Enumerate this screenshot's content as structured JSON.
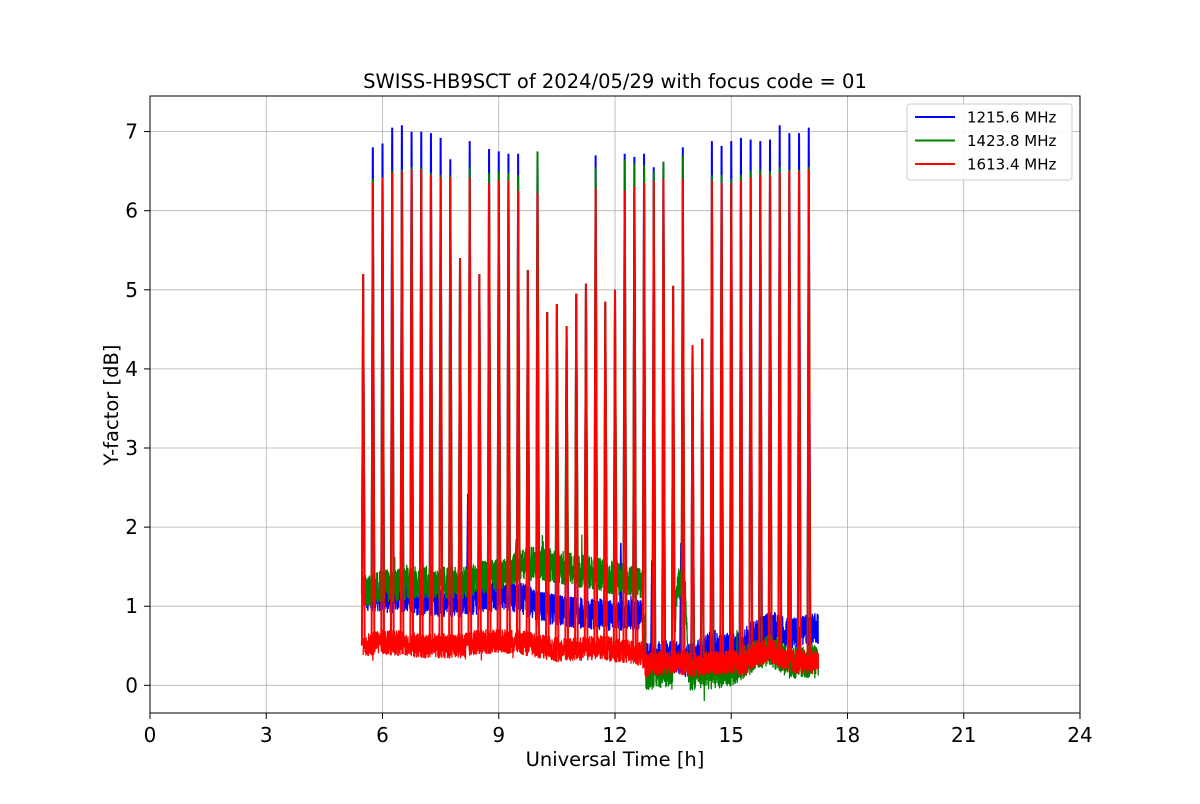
{
  "chart_data": {
    "type": "line",
    "title": "SWISS-HB9SCT of 2024/05/29 with focus code = 01",
    "xlabel": "Universal Time [h]",
    "ylabel": "Y-factor [dB]",
    "xlim": [
      0,
      24
    ],
    "ylim": [
      -0.35,
      7.45
    ],
    "xticks": [
      0,
      3,
      6,
      9,
      12,
      15,
      18,
      21,
      24
    ],
    "yticks": [
      0,
      1,
      2,
      3,
      4,
      5,
      6,
      7
    ],
    "grid": true,
    "legend_position": "top-right",
    "data_start": 5.5,
    "data_end": 17.25,
    "series": [
      {
        "name": "1215.6 MHz",
        "color": "#0000ff",
        "baseline": [
          [
            5.5,
            1.15
          ],
          [
            6,
            1.12
          ],
          [
            7,
            1.08
          ],
          [
            8,
            1.05
          ],
          [
            8.5,
            1.1
          ],
          [
            9,
            1.15
          ],
          [
            9.5,
            1.12
          ],
          [
            10,
            1.0
          ],
          [
            10.5,
            0.95
          ],
          [
            11,
            0.92
          ],
          [
            11.5,
            0.9
          ],
          [
            12,
            0.88
          ],
          [
            12.7,
            0.88
          ],
          [
            12.8,
            0.35
          ],
          [
            13.5,
            0.38
          ],
          [
            13.8,
            0.3
          ],
          [
            14,
            0.35
          ],
          [
            14.5,
            0.5
          ],
          [
            15,
            0.45
          ],
          [
            15.3,
            0.5
          ],
          [
            15.6,
            0.65
          ],
          [
            16,
            0.75
          ],
          [
            16.5,
            0.65
          ],
          [
            17,
            0.7
          ],
          [
            17.25,
            0.72
          ]
        ],
        "band": 0.28,
        "spikes": [
          [
            5.5,
            5.2
          ],
          [
            5.75,
            6.8
          ],
          [
            6.0,
            6.85
          ],
          [
            6.25,
            7.05
          ],
          [
            6.5,
            7.08
          ],
          [
            6.75,
            7.0
          ],
          [
            7.0,
            7.0
          ],
          [
            7.25,
            6.98
          ],
          [
            7.5,
            6.92
          ],
          [
            7.75,
            6.65
          ],
          [
            8.0,
            5.4
          ],
          [
            8.25,
            6.88
          ],
          [
            8.5,
            5.2
          ],
          [
            8.75,
            6.78
          ],
          [
            9.0,
            6.75
          ],
          [
            9.25,
            6.72
          ],
          [
            9.5,
            6.72
          ],
          [
            9.75,
            5.25
          ],
          [
            10.0,
            6.7
          ],
          [
            10.25,
            4.72
          ],
          [
            10.5,
            4.82
          ],
          [
            10.75,
            4.54
          ],
          [
            11.0,
            4.95
          ],
          [
            11.25,
            5.08
          ],
          [
            11.5,
            6.7
          ],
          [
            11.75,
            4.85
          ],
          [
            12.0,
            5.0
          ],
          [
            12.25,
            6.72
          ],
          [
            12.5,
            6.68
          ],
          [
            12.75,
            6.72
          ],
          [
            13.0,
            6.55
          ],
          [
            13.25,
            6.6
          ],
          [
            13.5,
            5.05
          ],
          [
            13.75,
            6.8
          ],
          [
            14.0,
            4.3
          ],
          [
            14.25,
            4.38
          ],
          [
            14.5,
            6.88
          ],
          [
            14.75,
            6.82
          ],
          [
            15.0,
            6.88
          ],
          [
            15.25,
            6.92
          ],
          [
            15.5,
            6.9
          ],
          [
            15.75,
            6.88
          ],
          [
            16.0,
            6.9
          ],
          [
            16.25,
            7.08
          ],
          [
            16.5,
            6.98
          ],
          [
            16.75,
            6.98
          ],
          [
            17.0,
            7.05
          ]
        ],
        "extra_peaks": [
          [
            8.2,
            2.42
          ],
          [
            12.15,
            1.8
          ],
          [
            12.95,
            1.58
          ],
          [
            13.7,
            1.8
          ]
        ]
      },
      {
        "name": "1423.8 MHz",
        "color": "#008000",
        "baseline": [
          [
            5.5,
            1.2
          ],
          [
            6,
            1.25
          ],
          [
            7,
            1.3
          ],
          [
            8,
            1.3
          ],
          [
            8.5,
            1.35
          ],
          [
            9,
            1.4
          ],
          [
            9.5,
            1.5
          ],
          [
            10,
            1.55
          ],
          [
            10.5,
            1.5
          ],
          [
            11,
            1.45
          ],
          [
            11.5,
            1.42
          ],
          [
            12,
            1.35
          ],
          [
            12.7,
            1.3
          ],
          [
            12.8,
            0.15
          ],
          [
            13.5,
            0.2
          ],
          [
            13.6,
            1.3
          ],
          [
            13.8,
            1.3
          ],
          [
            13.9,
            0.15
          ],
          [
            14.5,
            0.15
          ],
          [
            15,
            0.2
          ],
          [
            15.5,
            0.35
          ],
          [
            16,
            0.45
          ],
          [
            16.5,
            0.3
          ],
          [
            17,
            0.3
          ],
          [
            17.25,
            0.3
          ]
        ],
        "band": 0.3,
        "spikes": [
          [
            5.5,
            5.2
          ],
          [
            5.75,
            6.4
          ],
          [
            6.0,
            6.42
          ],
          [
            6.25,
            6.5
          ],
          [
            6.5,
            6.52
          ],
          [
            6.75,
            6.55
          ],
          [
            7.0,
            6.55
          ],
          [
            7.25,
            6.48
          ],
          [
            7.5,
            6.45
          ],
          [
            7.75,
            6.45
          ],
          [
            8.0,
            5.4
          ],
          [
            8.25,
            6.55
          ],
          [
            8.5,
            5.2
          ],
          [
            8.75,
            6.48
          ],
          [
            9.0,
            6.5
          ],
          [
            9.25,
            6.48
          ],
          [
            9.5,
            6.45
          ],
          [
            9.75,
            5.25
          ],
          [
            10.0,
            6.75
          ],
          [
            10.25,
            4.72
          ],
          [
            10.5,
            4.82
          ],
          [
            10.75,
            4.54
          ],
          [
            11.0,
            4.95
          ],
          [
            11.25,
            5.08
          ],
          [
            11.5,
            6.55
          ],
          [
            11.75,
            4.85
          ],
          [
            12.0,
            5.0
          ],
          [
            12.25,
            6.65
          ],
          [
            12.5,
            6.6
          ],
          [
            12.75,
            6.58
          ],
          [
            13.0,
            6.5
          ],
          [
            13.25,
            6.62
          ],
          [
            13.5,
            5.05
          ],
          [
            13.75,
            6.7
          ],
          [
            14.0,
            4.3
          ],
          [
            14.25,
            4.38
          ],
          [
            14.5,
            6.45
          ],
          [
            14.75,
            6.45
          ],
          [
            15.0,
            6.4
          ],
          [
            15.25,
            6.45
          ],
          [
            15.5,
            6.5
          ],
          [
            15.75,
            6.52
          ],
          [
            16.0,
            6.5
          ],
          [
            16.25,
            6.55
          ],
          [
            16.5,
            6.52
          ],
          [
            16.75,
            6.52
          ],
          [
            17.0,
            6.55
          ]
        ],
        "extra_peaks": [
          [
            9.45,
            1.85
          ]
        ]
      },
      {
        "name": "1613.4 MHz",
        "color": "#ff0000",
        "baseline": [
          [
            5.5,
            0.5
          ],
          [
            6,
            0.55
          ],
          [
            7,
            0.5
          ],
          [
            8,
            0.5
          ],
          [
            8.5,
            0.55
          ],
          [
            9,
            0.55
          ],
          [
            9.5,
            0.55
          ],
          [
            10,
            0.5
          ],
          [
            10.5,
            0.45
          ],
          [
            11,
            0.45
          ],
          [
            11.5,
            0.48
          ],
          [
            12,
            0.45
          ],
          [
            12.7,
            0.4
          ],
          [
            12.8,
            0.25
          ],
          [
            13.5,
            0.3
          ],
          [
            13.8,
            0.28
          ],
          [
            14,
            0.25
          ],
          [
            14.5,
            0.28
          ],
          [
            15,
            0.3
          ],
          [
            15.3,
            0.25
          ],
          [
            15.6,
            0.38
          ],
          [
            16,
            0.45
          ],
          [
            16.5,
            0.3
          ],
          [
            17,
            0.3
          ],
          [
            17.25,
            0.3
          ]
        ],
        "band": 0.22,
        "spikes": [
          [
            5.5,
            5.2
          ],
          [
            5.75,
            6.35
          ],
          [
            6.0,
            6.42
          ],
          [
            6.25,
            6.48
          ],
          [
            6.5,
            6.5
          ],
          [
            6.75,
            6.52
          ],
          [
            7.0,
            6.52
          ],
          [
            7.25,
            6.45
          ],
          [
            7.5,
            6.42
          ],
          [
            7.75,
            6.42
          ],
          [
            8.0,
            5.4
          ],
          [
            8.25,
            6.42
          ],
          [
            8.5,
            5.2
          ],
          [
            8.75,
            6.35
          ],
          [
            9.0,
            6.38
          ],
          [
            9.25,
            6.38
          ],
          [
            9.5,
            6.25
          ],
          [
            9.75,
            5.25
          ],
          [
            10.0,
            6.22
          ],
          [
            10.25,
            4.72
          ],
          [
            10.5,
            4.82
          ],
          [
            10.75,
            4.54
          ],
          [
            11.0,
            4.95
          ],
          [
            11.25,
            5.08
          ],
          [
            11.5,
            6.28
          ],
          [
            11.75,
            4.85
          ],
          [
            12.0,
            5.0
          ],
          [
            12.25,
            6.25
          ],
          [
            12.5,
            6.3
          ],
          [
            12.75,
            6.35
          ],
          [
            13.0,
            6.38
          ],
          [
            13.25,
            6.4
          ],
          [
            13.5,
            5.05
          ],
          [
            13.75,
            6.4
          ],
          [
            14.0,
            4.3
          ],
          [
            14.25,
            4.38
          ],
          [
            14.5,
            6.38
          ],
          [
            14.75,
            6.35
          ],
          [
            15.0,
            6.35
          ],
          [
            15.25,
            6.38
          ],
          [
            15.5,
            6.42
          ],
          [
            15.75,
            6.45
          ],
          [
            16.0,
            6.45
          ],
          [
            16.25,
            6.48
          ],
          [
            16.5,
            6.5
          ],
          [
            16.75,
            6.5
          ],
          [
            17.0,
            6.52
          ]
        ],
        "extra_peaks": []
      }
    ]
  }
}
